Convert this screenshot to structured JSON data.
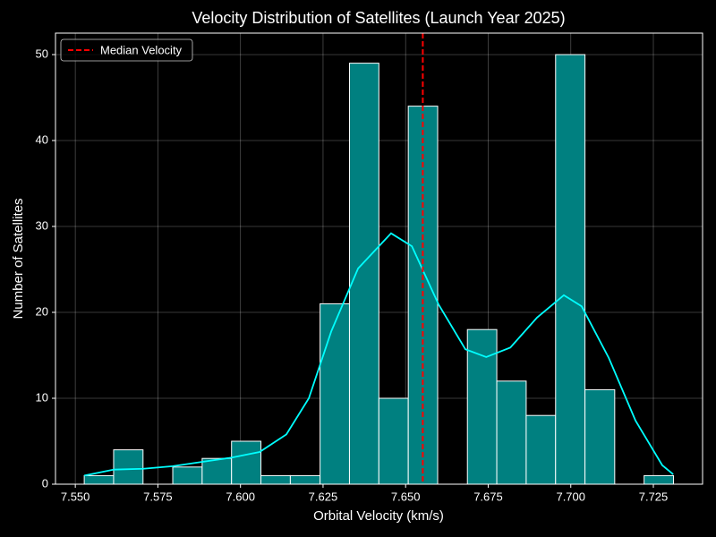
{
  "chart_data": {
    "type": "histogram",
    "title": "Velocity Distribution of Satellites (Launch Year 2025)",
    "xlabel": "Orbital Velocity (km/s)",
    "ylabel": "Number of Satellites",
    "bins": [
      7.5527,
      7.5616,
      7.5705,
      7.5795,
      7.5884,
      7.5973,
      7.6062,
      7.6151,
      7.6241,
      7.633,
      7.6419,
      7.6508,
      7.6597,
      7.6687,
      7.6776,
      7.6865,
      7.6954,
      7.7043,
      7.7133,
      7.7222,
      7.7311
    ],
    "values": [
      1,
      4,
      0,
      2,
      3,
      5,
      1,
      1,
      21,
      49,
      10,
      44,
      0,
      18,
      12,
      8,
      50,
      11,
      0,
      1
    ],
    "color": "#008080",
    "edgecolor": "#ffffff",
    "kde": {
      "color": "#00ffff",
      "x": [
        7.5527,
        7.5617,
        7.5706,
        7.5795,
        7.5885,
        7.5974,
        7.6058,
        7.6139,
        7.6207,
        7.6275,
        7.6356,
        7.6456,
        7.6519,
        7.66,
        7.6681,
        7.6744,
        7.6817,
        7.6898,
        7.6979,
        7.7033,
        7.7115,
        7.7196,
        7.7277,
        7.731
      ],
      "y": [
        1.0,
        1.7,
        1.8,
        2.1,
        2.6,
        3.1,
        3.75,
        5.8,
        10,
        17.8,
        25.1,
        29.2,
        27.7,
        20.9,
        15.7,
        14.8,
        15.9,
        19.4,
        22.0,
        20.7,
        14.7,
        7.4,
        2.2,
        1.15
      ]
    },
    "median": {
      "name": "Median Velocity",
      "value": 7.6552,
      "color": "#ff0000"
    },
    "xlim": [
      7.544,
      7.7399
    ],
    "ylim": [
      0,
      52.5
    ],
    "xticks": [
      {
        "value": 7.55,
        "label": "7.550"
      },
      {
        "value": 7.575,
        "label": "7.575"
      },
      {
        "value": 7.6,
        "label": "7.600"
      },
      {
        "value": 7.625,
        "label": "7.625"
      },
      {
        "value": 7.65,
        "label": "7.650"
      },
      {
        "value": 7.675,
        "label": "7.675"
      },
      {
        "value": 7.7,
        "label": "7.700"
      },
      {
        "value": 7.725,
        "label": "7.725"
      }
    ],
    "yticks": [
      0,
      10,
      20,
      30,
      40,
      50
    ],
    "grid": true,
    "legend": "upper left"
  }
}
